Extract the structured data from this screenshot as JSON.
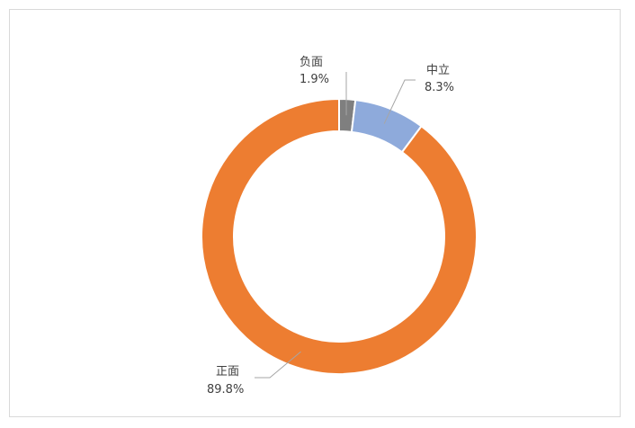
{
  "chart_data": {
    "type": "pie",
    "variant": "doughnut",
    "title": "",
    "legend": "none",
    "start_angle_deg": 0,
    "direction": "clockwise",
    "slices": [
      {
        "label": "负面",
        "value": 1.9,
        "display": "1.9%",
        "color": "#7f7f7f"
      },
      {
        "label": "中立",
        "value": 8.3,
        "display": "8.3%",
        "color": "#8eaadb"
      },
      {
        "label": "正面",
        "value": 89.8,
        "display": "89.8%",
        "color": "#ed7d31"
      }
    ]
  }
}
